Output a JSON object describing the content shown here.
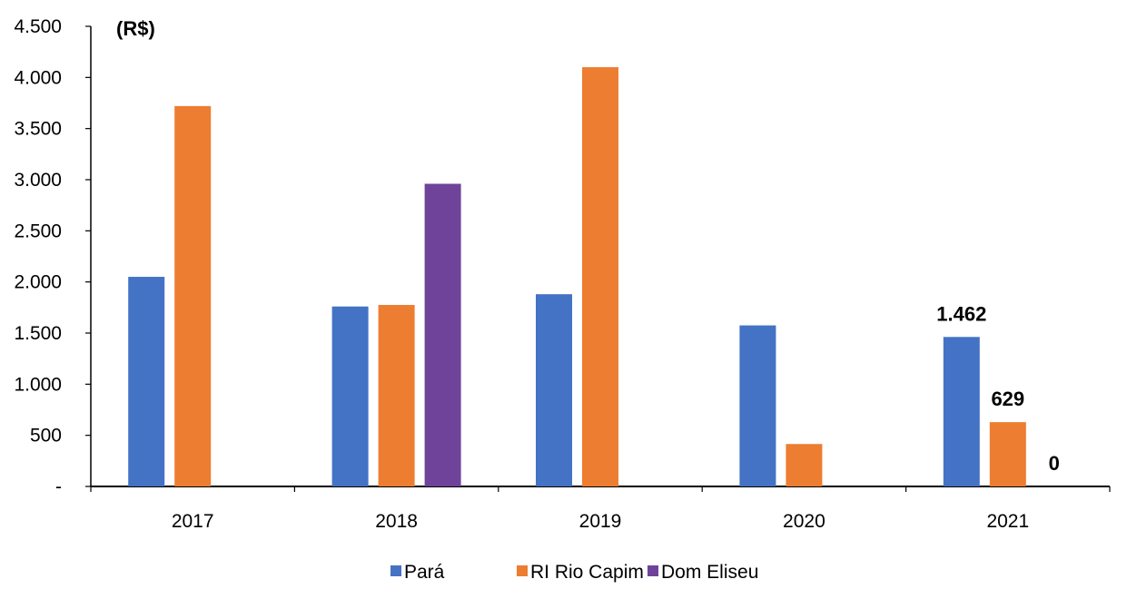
{
  "chart_data": {
    "type": "bar",
    "title": "",
    "unit_label": "(R$)",
    "xlabel": "",
    "ylabel": "",
    "categories": [
      "2017",
      "2018",
      "2019",
      "2020",
      "2021"
    ],
    "series": [
      {
        "name": "Pará",
        "color": "#4472c4",
        "values": [
          2050,
          1760,
          1880,
          1575,
          1462
        ]
      },
      {
        "name": "RI Rio Capim",
        "color": "#ed7d31",
        "values": [
          3720,
          1775,
          4100,
          415,
          629
        ]
      },
      {
        "name": "Dom Eliseu",
        "color": "#70439a",
        "values": [
          null,
          2960,
          null,
          null,
          0
        ]
      }
    ],
    "y_ticks": [
      {
        "value": 0,
        "label": "-"
      },
      {
        "value": 500,
        "label": "500"
      },
      {
        "value": 1000,
        "label": "1.000"
      },
      {
        "value": 1500,
        "label": "1.500"
      },
      {
        "value": 2000,
        "label": "2.000"
      },
      {
        "value": 2500,
        "label": "2.500"
      },
      {
        "value": 3000,
        "label": "3.000"
      },
      {
        "value": 3500,
        "label": "3.500"
      },
      {
        "value": 4000,
        "label": "4.000"
      },
      {
        "value": 4500,
        "label": "4.500"
      }
    ],
    "ylim": [
      0,
      4500
    ],
    "grid": false,
    "legend_position": "bottom",
    "data_labels": [
      {
        "category": "2021",
        "series": "Pará",
        "text": "1.462"
      },
      {
        "category": "2021",
        "series": "RI Rio Capim",
        "text": "629"
      },
      {
        "category": "2021",
        "series": "Dom Eliseu",
        "text": "0"
      }
    ]
  }
}
